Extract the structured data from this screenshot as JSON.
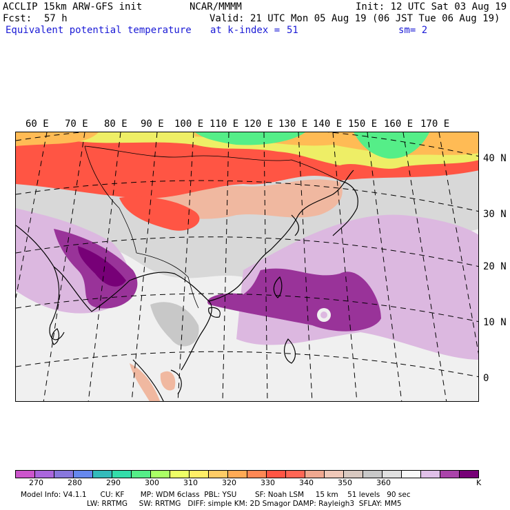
{
  "header": {
    "model": "ACCLIP 15km ARW-GFS init",
    "org": "NCAR/MMMM",
    "init": "Init: 12 UTC Sat 03 Aug 19",
    "fcst_label": "Fcst:",
    "fcst_value": "57 h",
    "valid": "Valid: 21 UTC Mon 05 Aug 19 (06 JST Tue 06 Aug 19)",
    "field": "Equivalent potential temperature",
    "level_label": "at k-index =",
    "level_value": "51",
    "smooth": "sm= 2"
  },
  "map": {
    "lon_labels": [
      "60 E",
      "70 E",
      "80 E",
      "90 E",
      "100 E",
      "110 E",
      "120 E",
      "130 E",
      "140 E",
      "150 E",
      "160 E",
      "170 E"
    ],
    "lat_labels": [
      "40 N",
      "30 N",
      "20 N",
      "10 N",
      "0"
    ],
    "colors": {
      "c270": "#cc55cc",
      "c280": "#7777dd",
      "c290": "#33cccc",
      "c300": "#55ee88",
      "c310": "#eeee66",
      "c320": "#ffbb55",
      "c330": "#ff5544",
      "c340": "#f0b8a0",
      "c350": "#c8c8c8",
      "c360": "#f0f0f0",
      "c370": "#dcb8e0",
      "c380": "#993399",
      "c390": "#770077"
    }
  },
  "colorbar": {
    "colors": [
      "#cc55cc",
      "#aa66dd",
      "#8877dd",
      "#6688ee",
      "#33bbbb",
      "#33ddaa",
      "#55ee88",
      "#aaff66",
      "#eeff66",
      "#ffee66",
      "#ffcc66",
      "#ffaa55",
      "#ff8855",
      "#ff5544",
      "#ff6655",
      "#f0a890",
      "#f0c8b8",
      "#d8c8c0",
      "#c8c8c8",
      "#e0e0e0",
      "#f8f8f8",
      "#e0c0e8",
      "#aa44aa",
      "#770077"
    ],
    "labels": [
      "270",
      "280",
      "290",
      "300",
      "310",
      "320",
      "330",
      "340",
      "350",
      "360"
    ],
    "unit": "K"
  },
  "footer": {
    "line1": "Model Info: V4.1.1      CU: KF       MP: WDM 6class  PBL: YSU        SF: Noah LSM     15 km    51 levels   90 sec",
    "line2": "LW: RRTMG     SW: RRTMG   DIFF: simple KM: 2D Smagor DAMP: Rayleigh3  SFLAY: MM5"
  }
}
